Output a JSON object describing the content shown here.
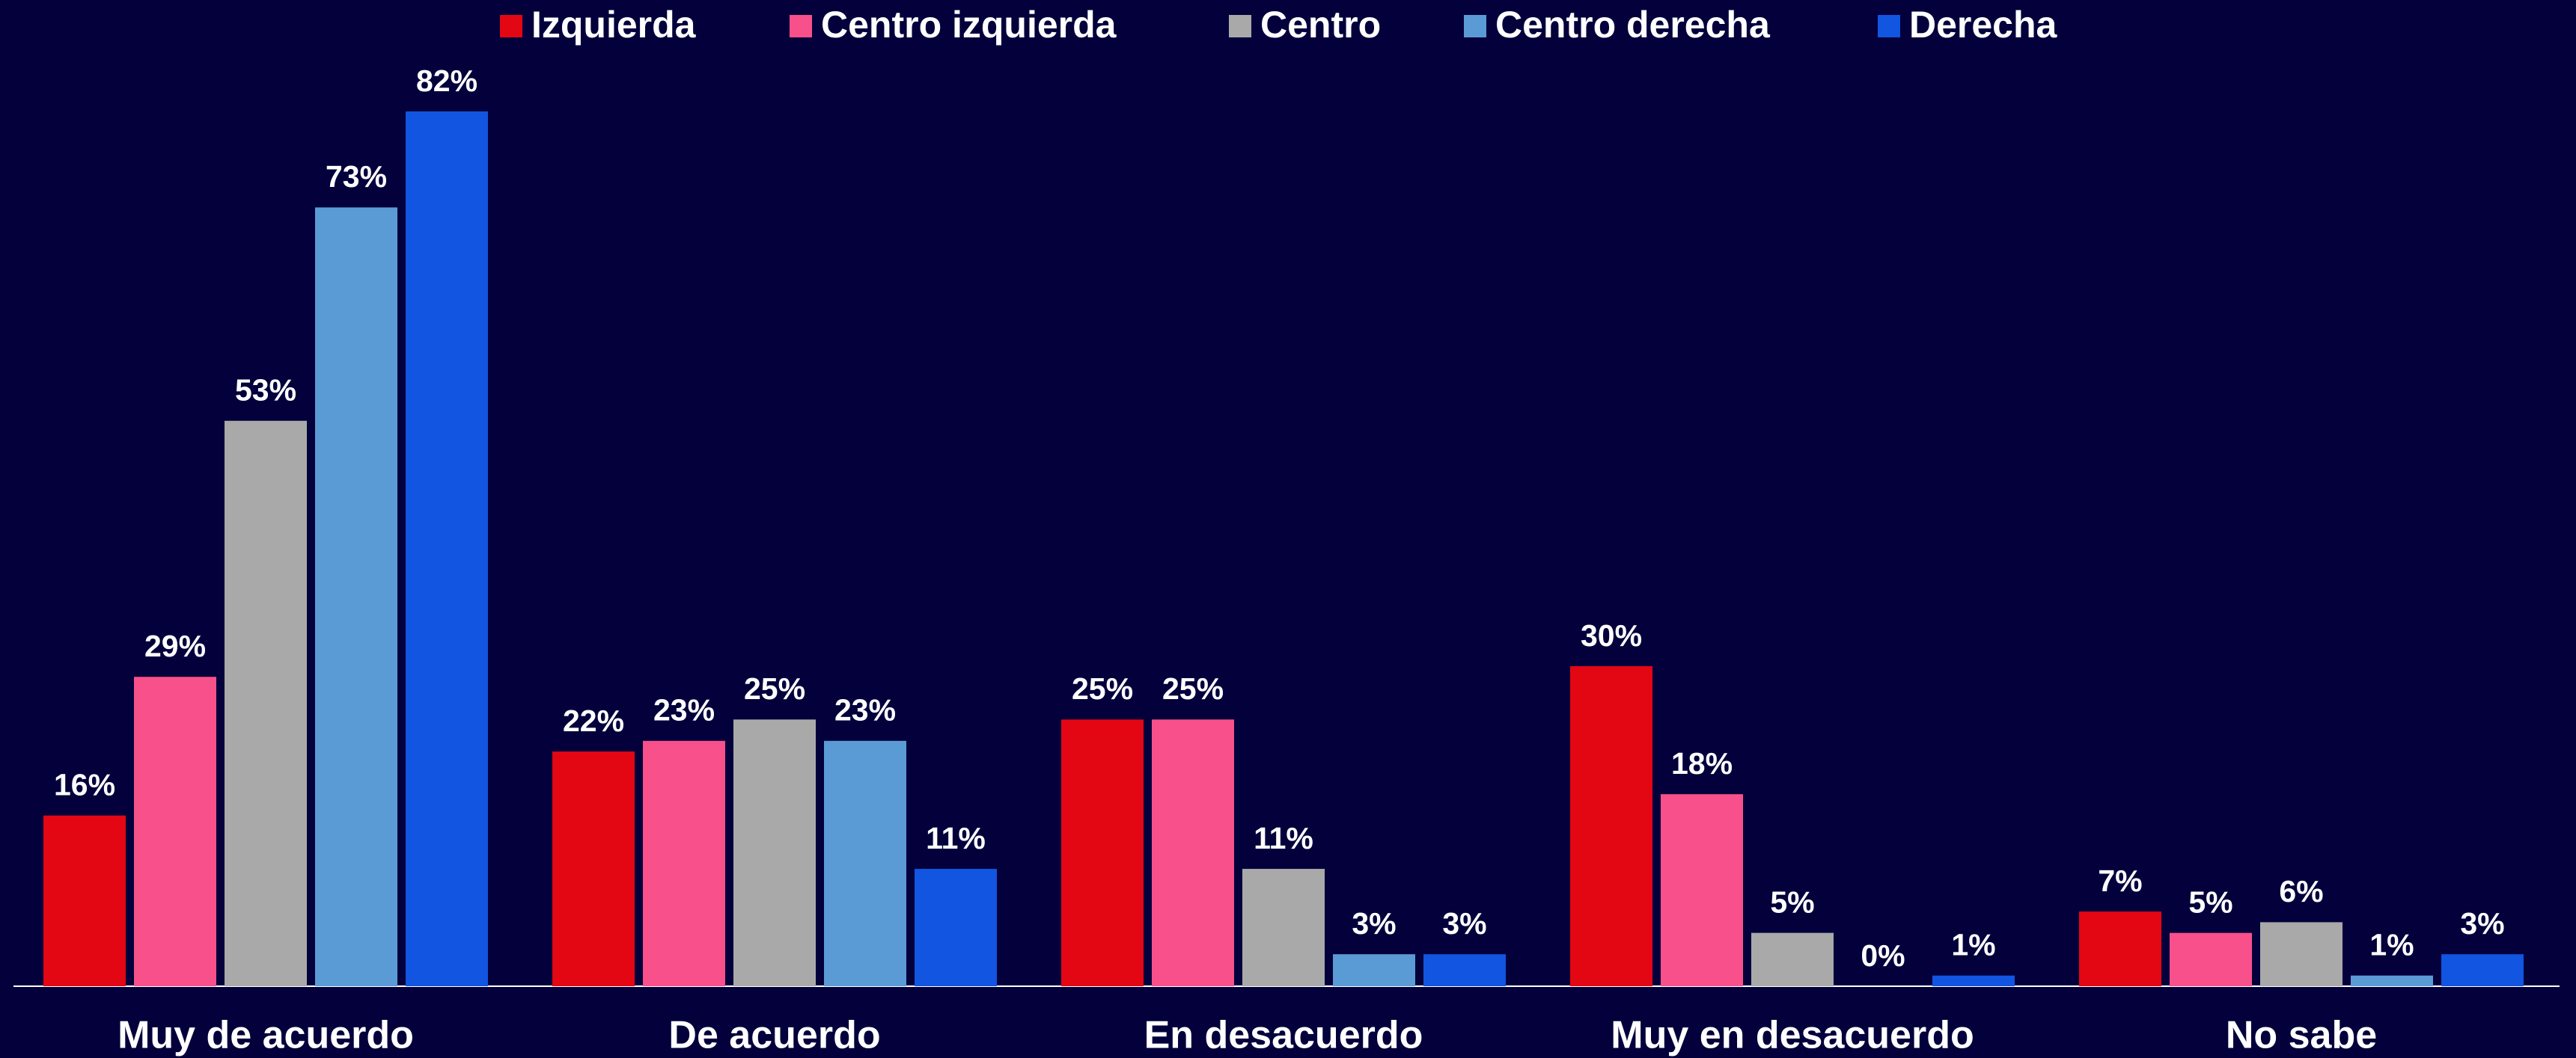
{
  "chart_data": {
    "type": "bar",
    "categories": [
      "Muy de acuerdo",
      "De acuerdo",
      "En desacuerdo",
      "Muy en desacuerdo",
      "No sabe"
    ],
    "series": [
      {
        "name": "Izquierda",
        "color": "#e30613",
        "values": [
          16,
          22,
          25,
          30,
          7
        ],
        "value_labels": [
          "16%",
          "22%",
          "25%",
          "30%",
          "7%"
        ]
      },
      {
        "name": "Centro izquierda",
        "color": "#f7508a",
        "values": [
          29,
          23,
          25,
          18,
          5
        ],
        "value_labels": [
          "29%",
          "23%",
          "25%",
          "18%",
          "5%"
        ]
      },
      {
        "name": "Centro",
        "color": "#a9a9a9",
        "values": [
          53,
          25,
          11,
          5,
          6
        ],
        "value_labels": [
          "53%",
          "25%",
          "11%",
          "5%",
          "6%"
        ]
      },
      {
        "name": "Centro derecha",
        "color": "#5b9bd5",
        "values": [
          73,
          23,
          3,
          0,
          1
        ],
        "value_labels": [
          "73%",
          "23%",
          "3%",
          "0%",
          "1%"
        ]
      },
      {
        "name": "Derecha",
        "color": "#1155e0",
        "values": [
          82,
          11,
          3,
          1,
          3
        ],
        "value_labels": [
          "82%",
          "11%",
          "3%",
          "1%",
          "3%"
        ]
      }
    ],
    "ylim": [
      0,
      82
    ],
    "legend": "top"
  }
}
